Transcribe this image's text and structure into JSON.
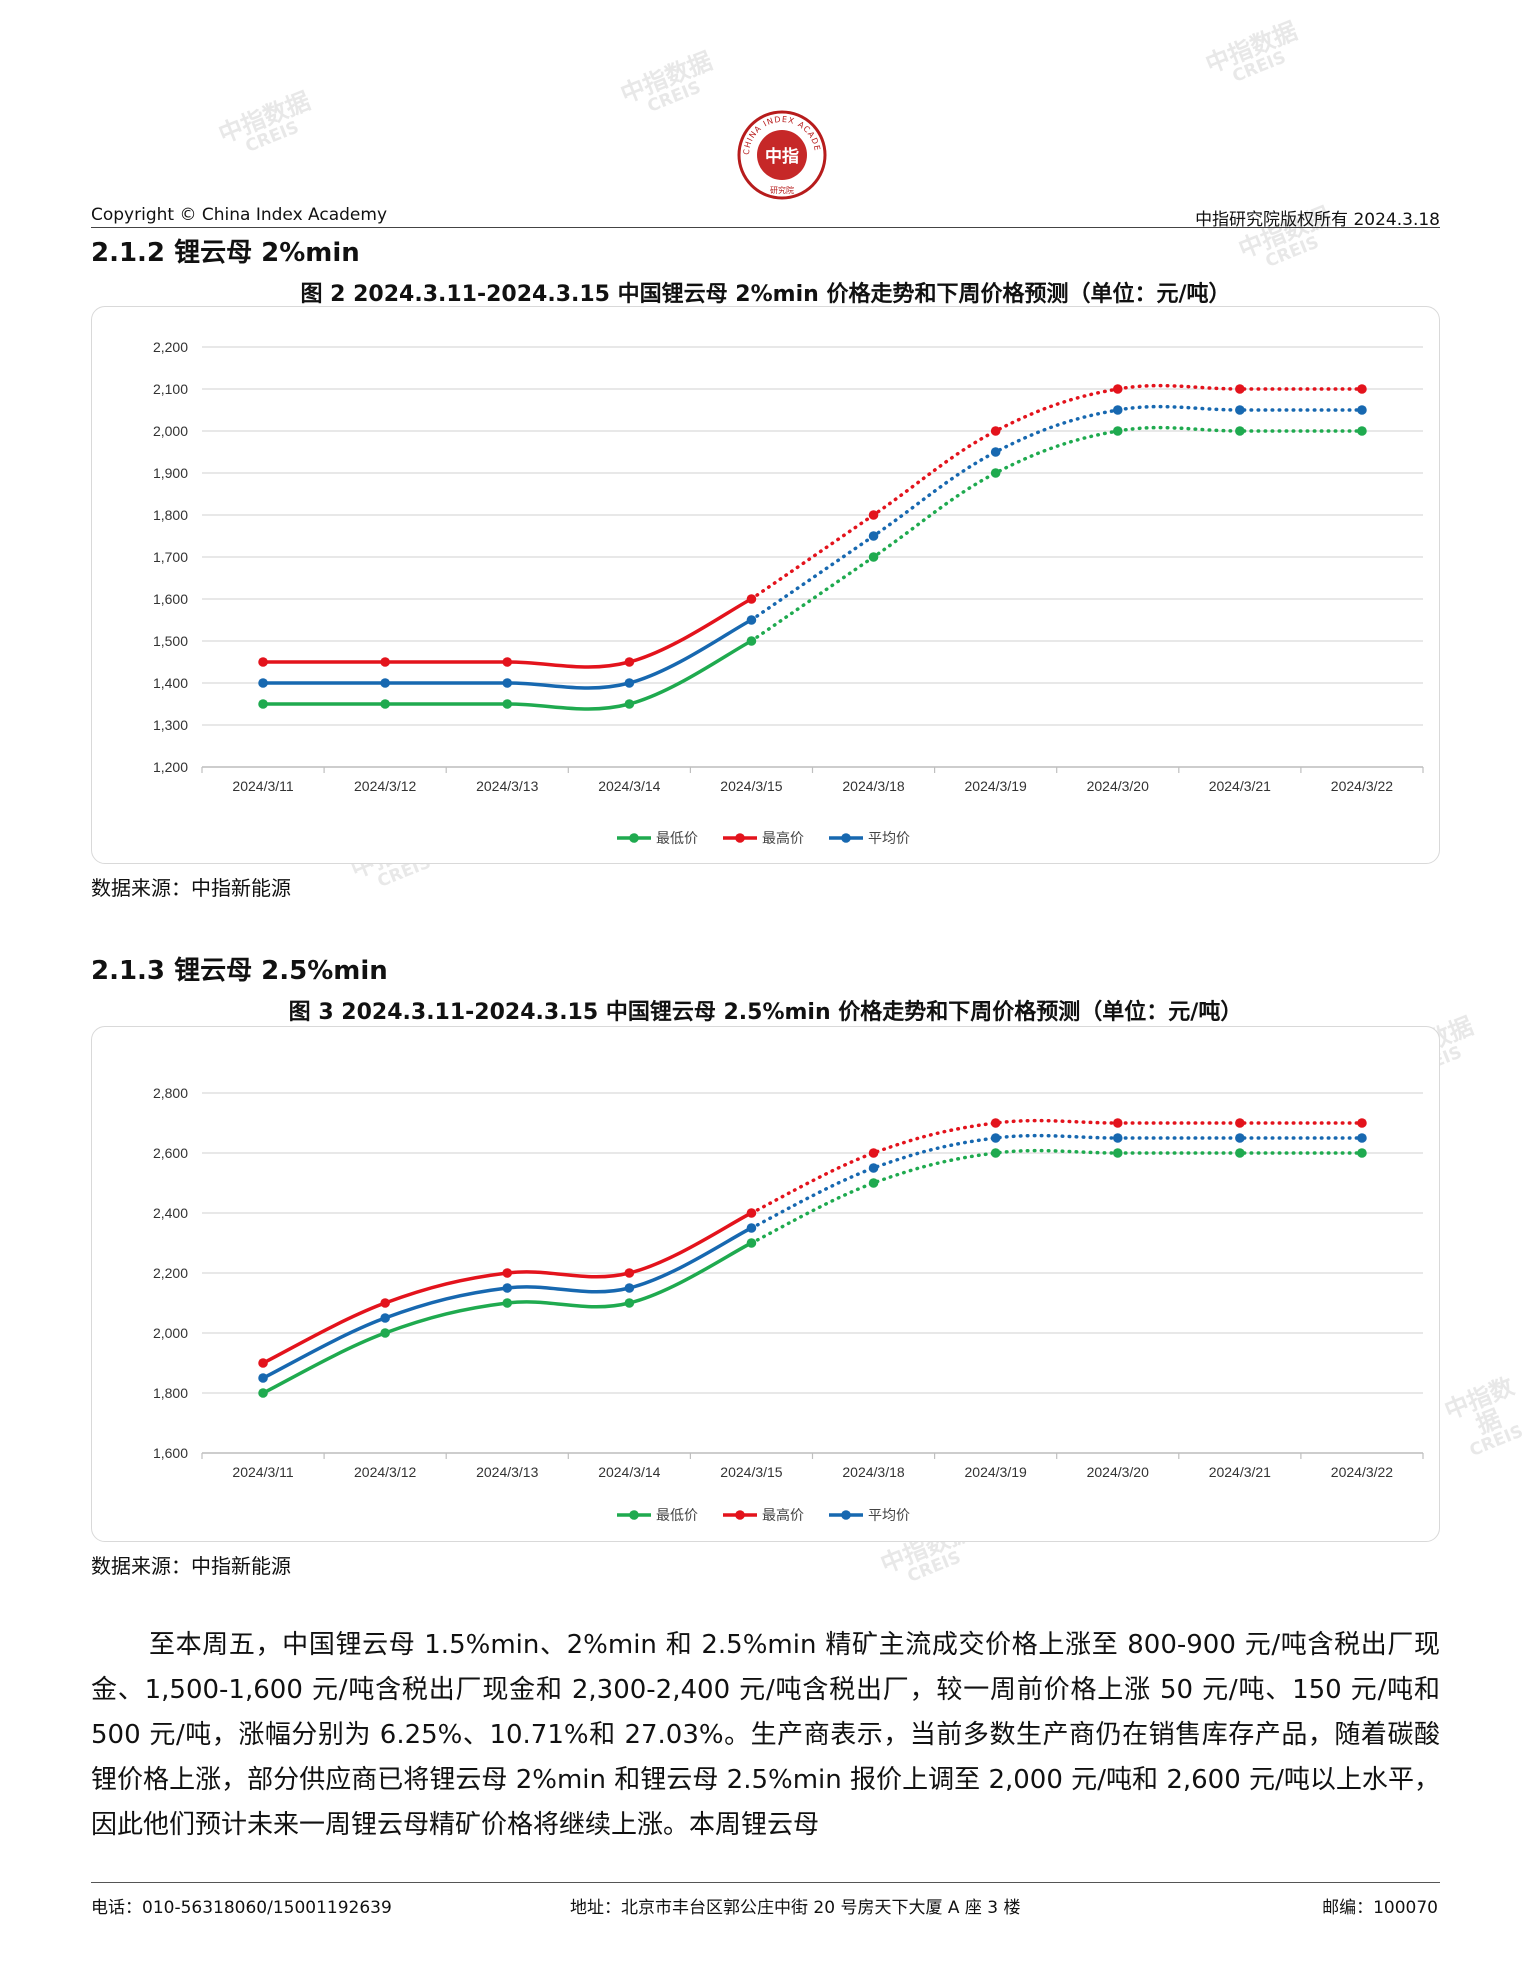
{
  "header": {
    "logo_text": "中指",
    "logo_ring_text": "CHINA INDEX ACADEMY",
    "logo_sub": "研究院",
    "copyright": "Copyright © China Index Academy",
    "rights": "中指研究院版权所有 2024.3.18"
  },
  "watermark": {
    "cn": "中指数据",
    "en": "CREIS"
  },
  "sections": [
    {
      "title": "2.1.2 锂云母 2%min",
      "caption": "图 2 2024.3.11-2024.3.15 中国锂云母 2%min 价格走势和下周价格预测（单位：元/吨）",
      "source": "数据来源：中指新能源"
    },
    {
      "title": "2.1.3 锂云母 2.5%min",
      "caption": "图 3 2024.3.11-2024.3.15 中国锂云母 2.5%min 价格走势和下周价格预测（单位：元/吨）",
      "source": "数据来源：中指新能源"
    }
  ],
  "chart_data": [
    {
      "type": "line",
      "categories": [
        "2024/3/11",
        "2024/3/12",
        "2024/3/13",
        "2024/3/14",
        "2024/3/15",
        "2024/3/18",
        "2024/3/19",
        "2024/3/20",
        "2024/3/21",
        "2024/3/22"
      ],
      "forecast_start_index": 4,
      "ylim": [
        1200,
        2200
      ],
      "yticks": [
        1200,
        1300,
        1400,
        1500,
        1600,
        1700,
        1800,
        1900,
        2000,
        2100,
        2200
      ],
      "ytick_labels": [
        "1,200",
        "1,300",
        "1,400",
        "1,500",
        "1,600",
        "1,700",
        "1,800",
        "1,900",
        "2,000",
        "2,100",
        "2,200"
      ],
      "grid": true,
      "legend_position": "bottom",
      "series": [
        {
          "name": "最低价",
          "color": "#1faa4f",
          "values": [
            1350,
            1350,
            1350,
            1350,
            1500,
            1700,
            1900,
            2000,
            2000,
            2000
          ]
        },
        {
          "name": "最高价",
          "color": "#e3131c",
          "values": [
            1450,
            1450,
            1450,
            1450,
            1600,
            1800,
            2000,
            2100,
            2100,
            2100
          ]
        },
        {
          "name": "平均价",
          "color": "#1768b0",
          "values": [
            1400,
            1400,
            1400,
            1400,
            1550,
            1750,
            1950,
            2050,
            2050,
            2050
          ]
        }
      ]
    },
    {
      "type": "line",
      "categories": [
        "2024/3/11",
        "2024/3/12",
        "2024/3/13",
        "2024/3/14",
        "2024/3/15",
        "2024/3/18",
        "2024/3/19",
        "2024/3/20",
        "2024/3/21",
        "2024/3/22"
      ],
      "forecast_start_index": 4,
      "ylim": [
        1600,
        2800
      ],
      "yticks": [
        1600,
        1800,
        2000,
        2200,
        2400,
        2600,
        2800
      ],
      "ytick_labels": [
        "1,600",
        "1,800",
        "2,000",
        "2,200",
        "2,400",
        "2,600",
        "2,800"
      ],
      "grid": true,
      "legend_position": "bottom",
      "series": [
        {
          "name": "最低价",
          "color": "#1faa4f",
          "values": [
            1800,
            2000,
            2100,
            2100,
            2300,
            2500,
            2600,
            2600,
            2600,
            2600
          ]
        },
        {
          "name": "最高价",
          "color": "#e3131c",
          "values": [
            1900,
            2100,
            2200,
            2200,
            2400,
            2600,
            2700,
            2700,
            2700,
            2700
          ]
        },
        {
          "name": "平均价",
          "color": "#1768b0",
          "values": [
            1850,
            2050,
            2150,
            2150,
            2350,
            2550,
            2650,
            2650,
            2650,
            2650
          ]
        }
      ]
    }
  ],
  "body_paragraph": "至本周五，中国锂云母 1.5%min、2%min 和 2.5%min 精矿主流成交价格上涨至 800-900 元/吨含税出厂现金、1,500-1,600 元/吨含税出厂现金和 2,300-2,400 元/吨含税出厂，较一周前价格上涨 50 元/吨、150 元/吨和 500 元/吨，涨幅分别为 6.25%、10.71%和 27.03%。生产商表示，当前多数生产商仍在销售库存产品，随着碳酸锂价格上涨，部分供应商已将锂云母 2%min 和锂云母 2.5%min 报价上调至 2,000 元/吨和 2,600 元/吨以上水平，因此他们预计未来一周锂云母精矿价格将继续上涨。本周锂云母",
  "footer": {
    "phone": "电话：010-56318060/15001192639",
    "address": "地址：北京市丰台区郭公庄中街 20 号房天下大厦 A 座 3 楼",
    "postcode": "邮编：100070"
  }
}
